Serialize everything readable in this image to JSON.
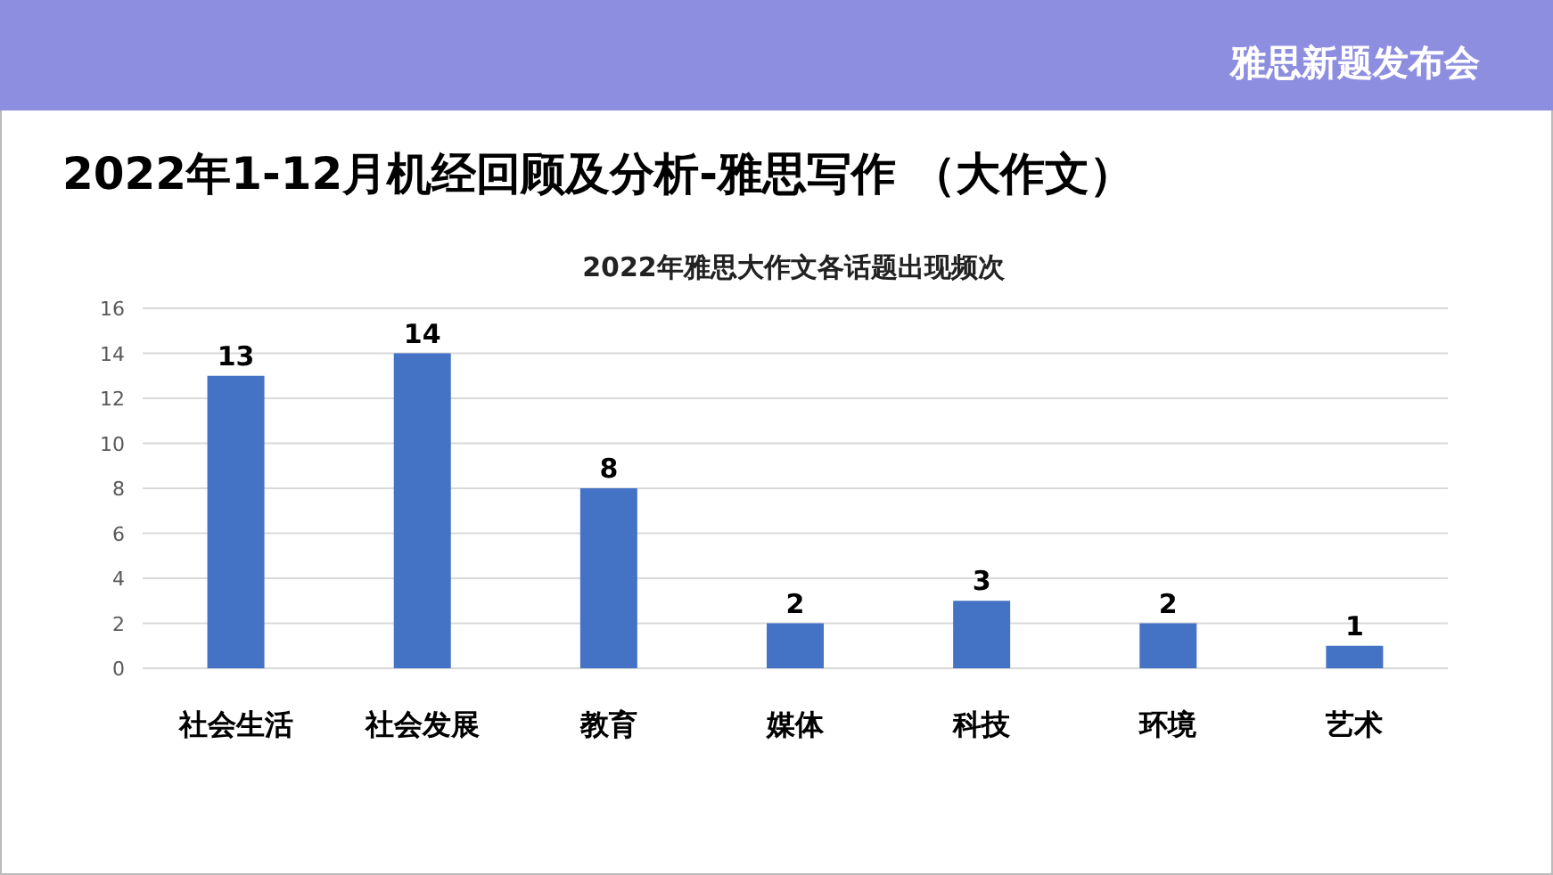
{
  "chart_data": {
    "type": "bar",
    "title": "2022年1-12月机经回顾及分析-雅思写作 （大作文）",
    "subtitle": "2022年雅思大作文各话题出现频次",
    "annotations": [
      "雅思新题发布会"
    ],
    "categories": [
      "社会生活",
      "社会发展",
      "教育",
      "媒体",
      "科技",
      "环境",
      "艺术"
    ],
    "values": [
      13,
      14,
      8,
      2,
      3,
      2,
      1
    ],
    "color": "#4472c4",
    "ylim": [
      0,
      16
    ],
    "yticks": [
      0,
      2,
      4,
      6,
      8,
      10,
      12,
      14,
      16
    ],
    "grid": "y",
    "data_labels": true
  }
}
